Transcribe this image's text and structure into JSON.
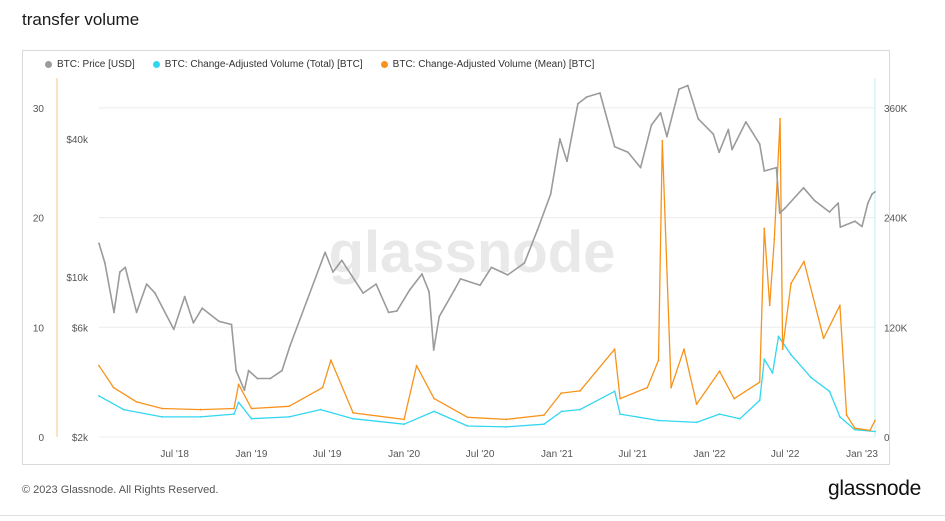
{
  "page": {
    "title": "transfer volume",
    "footer": "© 2023 Glassnode. All Rights Reserved.",
    "brand": "glassnode",
    "watermark": "glassnode"
  },
  "chart_data": {
    "type": "line",
    "legend_position": "top-left",
    "grid": true,
    "colors": {
      "price": "#9b9b9b",
      "total": "#33d6f0",
      "mean": "#f7931a"
    },
    "x_ticks": [
      "Jul '18",
      "Jan '19",
      "Jul '19",
      "Jan '20",
      "Jul '20",
      "Jan '21",
      "Jul '21",
      "Jan '22",
      "Jul '22",
      "Jan '23"
    ],
    "x_range": [
      "2018-01-01",
      "2023-02-01"
    ],
    "axes": {
      "left_mean": {
        "ticks": [
          "0",
          "10",
          "20",
          "30"
        ],
        "range": [
          0,
          33
        ]
      },
      "left_price": {
        "ticks": [
          "$2k",
          "$6k",
          "$10k",
          "$40k"
        ],
        "scale": "log"
      },
      "right_total": {
        "ticks": [
          "0",
          "120K",
          "240K",
          "360K"
        ],
        "range": [
          0,
          396000
        ]
      }
    },
    "series": [
      {
        "name": "BTC: Price [USD]",
        "key": "price",
        "axis": "left_price",
        "points": [
          [
            "2018-01-01",
            14000
          ],
          [
            "2018-01-15",
            11500
          ],
          [
            "2018-02-06",
            7000
          ],
          [
            "2018-02-20",
            10500
          ],
          [
            "2018-03-05",
            11000
          ],
          [
            "2018-04-01",
            7000
          ],
          [
            "2018-04-25",
            9300
          ],
          [
            "2018-05-15",
            8500
          ],
          [
            "2018-06-29",
            5900
          ],
          [
            "2018-07-25",
            8200
          ],
          [
            "2018-08-15",
            6300
          ],
          [
            "2018-09-05",
            7300
          ],
          [
            "2018-10-15",
            6400
          ],
          [
            "2018-11-14",
            6200
          ],
          [
            "2018-11-25",
            3900
          ],
          [
            "2018-12-15",
            3200
          ],
          [
            "2018-12-25",
            3900
          ],
          [
            "2019-01-15",
            3600
          ],
          [
            "2019-02-15",
            3600
          ],
          [
            "2019-03-15",
            3900
          ],
          [
            "2019-04-03",
            5000
          ],
          [
            "2019-05-15",
            8000
          ],
          [
            "2019-06-26",
            12800
          ],
          [
            "2019-07-15",
            10500
          ],
          [
            "2019-08-05",
            11800
          ],
          [
            "2019-09-25",
            8500
          ],
          [
            "2019-10-26",
            9300
          ],
          [
            "2019-11-25",
            7000
          ],
          [
            "2019-12-15",
            7100
          ],
          [
            "2020-01-15",
            8800
          ],
          [
            "2020-02-13",
            10300
          ],
          [
            "2020-03-01",
            8600
          ],
          [
            "2020-03-12",
            4800
          ],
          [
            "2020-03-25",
            6700
          ],
          [
            "2020-05-01",
            8800
          ],
          [
            "2020-05-15",
            9800
          ],
          [
            "2020-07-01",
            9200
          ],
          [
            "2020-07-28",
            11000
          ],
          [
            "2020-09-05",
            10200
          ],
          [
            "2020-10-15",
            11500
          ],
          [
            "2020-11-15",
            16000
          ],
          [
            "2020-12-17",
            23000
          ],
          [
            "2021-01-08",
            40000
          ],
          [
            "2021-01-25",
            32000
          ],
          [
            "2021-02-20",
            57000
          ],
          [
            "2021-03-13",
            61000
          ],
          [
            "2021-04-14",
            63500
          ],
          [
            "2021-05-19",
            37000
          ],
          [
            "2021-06-20",
            35000
          ],
          [
            "2021-07-20",
            30000
          ],
          [
            "2021-08-15",
            46000
          ],
          [
            "2021-09-06",
            52000
          ],
          [
            "2021-09-21",
            41000
          ],
          [
            "2021-10-20",
            66000
          ],
          [
            "2021-11-10",
            68500
          ],
          [
            "2021-12-05",
            49000
          ],
          [
            "2022-01-10",
            42000
          ],
          [
            "2022-01-24",
            35000
          ],
          [
            "2022-02-15",
            44000
          ],
          [
            "2022-02-24",
            36000
          ],
          [
            "2022-03-29",
            47500
          ],
          [
            "2022-05-01",
            38000
          ],
          [
            "2022-05-12",
            29000
          ],
          [
            "2022-06-10",
            30000
          ],
          [
            "2022-06-18",
            19000
          ],
          [
            "2022-07-01",
            20000
          ],
          [
            "2022-08-14",
            24500
          ],
          [
            "2022-09-10",
            21500
          ],
          [
            "2022-10-15",
            19200
          ],
          [
            "2022-11-05",
            21000
          ],
          [
            "2022-11-10",
            16500
          ],
          [
            "2022-12-15",
            17500
          ],
          [
            "2023-01-01",
            16600
          ],
          [
            "2023-01-15",
            21000
          ],
          [
            "2023-01-25",
            23000
          ],
          [
            "2023-02-01",
            23500
          ]
        ]
      },
      {
        "name": "BTC: Change-Adjusted Volume (Total) [BTC]",
        "key": "total",
        "axis": "right_total",
        "points": [
          [
            "2018-01-01",
            45000
          ],
          [
            "2018-03-01",
            30000
          ],
          [
            "2018-06-01",
            22000
          ],
          [
            "2018-09-01",
            22000
          ],
          [
            "2018-11-20",
            25000
          ],
          [
            "2018-12-01",
            38000
          ],
          [
            "2019-01-01",
            20000
          ],
          [
            "2019-04-01",
            22000
          ],
          [
            "2019-06-15",
            30000
          ],
          [
            "2019-09-01",
            20000
          ],
          [
            "2020-01-01",
            14000
          ],
          [
            "2020-03-13",
            28000
          ],
          [
            "2020-06-01",
            12000
          ],
          [
            "2020-09-01",
            11000
          ],
          [
            "2020-12-01",
            14000
          ],
          [
            "2021-01-12",
            28000
          ],
          [
            "2021-02-25",
            30000
          ],
          [
            "2021-05-19",
            50000
          ],
          [
            "2021-06-01",
            25000
          ],
          [
            "2021-09-01",
            18000
          ],
          [
            "2021-12-01",
            16000
          ],
          [
            "2022-01-25",
            25000
          ],
          [
            "2022-03-15",
            20000
          ],
          [
            "2022-05-01",
            40000
          ],
          [
            "2022-05-12",
            85000
          ],
          [
            "2022-06-01",
            70000
          ],
          [
            "2022-06-15",
            110000
          ],
          [
            "2022-07-15",
            90000
          ],
          [
            "2022-09-01",
            65000
          ],
          [
            "2022-10-15",
            50000
          ],
          [
            "2022-11-09",
            22000
          ],
          [
            "2022-12-15",
            8000
          ],
          [
            "2023-02-01",
            6000
          ]
        ]
      },
      {
        "name": "BTC: Change-Adjusted Volume (Mean) [BTC]",
        "key": "mean",
        "axis": "left_mean",
        "points": [
          [
            "2018-01-01",
            6.5
          ],
          [
            "2018-02-05",
            4.5
          ],
          [
            "2018-04-01",
            3.2
          ],
          [
            "2018-06-01",
            2.6
          ],
          [
            "2018-09-01",
            2.5
          ],
          [
            "2018-11-20",
            2.6
          ],
          [
            "2018-12-01",
            4.8
          ],
          [
            "2019-01-01",
            2.6
          ],
          [
            "2019-04-01",
            2.8
          ],
          [
            "2019-06-20",
            4.5
          ],
          [
            "2019-07-10",
            7.0
          ],
          [
            "2019-09-01",
            2.2
          ],
          [
            "2020-01-01",
            1.6
          ],
          [
            "2020-01-31",
            6.5
          ],
          [
            "2020-03-13",
            3.5
          ],
          [
            "2020-06-01",
            1.8
          ],
          [
            "2020-09-01",
            1.6
          ],
          [
            "2020-12-01",
            2.0
          ],
          [
            "2021-01-11",
            4.0
          ],
          [
            "2021-02-25",
            4.2
          ],
          [
            "2021-05-19",
            8.0
          ],
          [
            "2021-06-01",
            3.5
          ],
          [
            "2021-08-05",
            4.5
          ],
          [
            "2021-09-01",
            7.0
          ],
          [
            "2021-09-10",
            27.0
          ],
          [
            "2021-10-01",
            4.5
          ],
          [
            "2021-11-01",
            8.0
          ],
          [
            "2021-12-01",
            3.0
          ],
          [
            "2022-01-25",
            6.0
          ],
          [
            "2022-03-01",
            3.5
          ],
          [
            "2022-05-01",
            5.0
          ],
          [
            "2022-05-12",
            19.0
          ],
          [
            "2022-05-25",
            12.0
          ],
          [
            "2022-06-05",
            18.0
          ],
          [
            "2022-06-19",
            29.0
          ],
          [
            "2022-06-25",
            8.0
          ],
          [
            "2022-07-15",
            14.0
          ],
          [
            "2022-08-15",
            16.0
          ],
          [
            "2022-10-01",
            9.0
          ],
          [
            "2022-11-09",
            12.0
          ],
          [
            "2022-11-25",
            2.0
          ],
          [
            "2022-12-15",
            0.8
          ],
          [
            "2023-01-20",
            0.6
          ],
          [
            "2023-02-01",
            1.5
          ]
        ]
      }
    ]
  }
}
